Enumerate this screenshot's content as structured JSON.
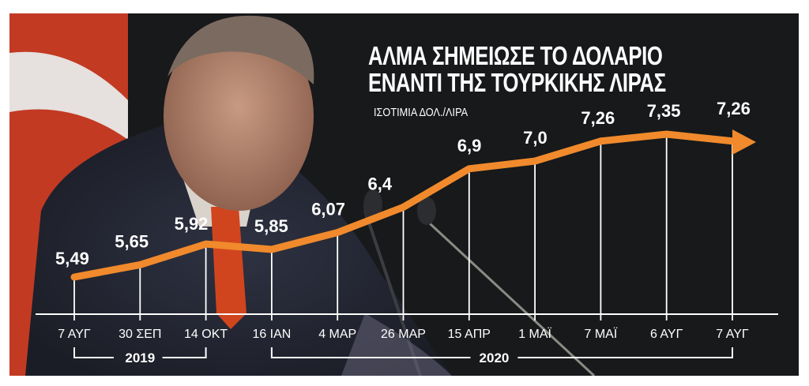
{
  "title_lines": [
    "ΑΛΜΑ ΣΗΜΕΙΩΣΕ ΤΟ ΔΟΛΑΡΙΟ",
    "ΕΝΑΝΤΙ ΤΗΣ ΤΟΥΡΚΙΚΗΣ ΛΙΡΑΣ"
  ],
  "subtitle": "ΙΣΟΤΙΜΙΑ ΔΟΛ./ΛΙΡΑ",
  "colors": {
    "line": "#f08a2c",
    "axis": "#ffffff",
    "text": "#ffffff",
    "background": "#141618"
  },
  "year_groups": [
    {
      "label": "2019",
      "from": "7 ΑΥΓ",
      "to": "14 ΟΚΤ"
    },
    {
      "label": "2020",
      "from": "16 ΙΑΝ",
      "to": "7 ΑΥΓ"
    }
  ],
  "chart_data": {
    "type": "line",
    "title": "ΑΛΜΑ ΣΗΜΕΙΩΣΕ ΤΟ ΔΟΛΑΡΙΟ ΕΝΑΝΤΙ ΤΗΣ ΤΟΥΡΚΙΚΗΣ ΛΙΡΑΣ",
    "subtitle": "ΙΣΟΤΙΜΙΑ ΔΟΛ./ΛΙΡΑ",
    "xlabel": "",
    "ylabel": "",
    "categories": [
      "7 ΑΥΓ",
      "30 ΣΕΠ",
      "14 ΟΚΤ",
      "16 ΙΑΝ",
      "4 ΜΑΡ",
      "26 ΜΑΡ",
      "15 ΑΠΡ",
      "1 ΜΑΪ",
      "7 ΜΑΪ",
      "6 ΑΥΓ",
      "7 ΑΥΓ"
    ],
    "value_labels": [
      "5,49",
      "5,65",
      "5,92",
      "5,85",
      "6,07",
      "6,4",
      "6,9",
      "7,0",
      "7,26",
      "7,35",
      "7,26"
    ],
    "series": [
      {
        "name": "USD/TRY",
        "values": [
          5.49,
          5.65,
          5.92,
          5.85,
          6.07,
          6.4,
          6.9,
          7.0,
          7.26,
          7.35,
          7.26
        ]
      }
    ],
    "year_groups": [
      {
        "label": "2019",
        "categories": [
          "7 ΑΥΓ",
          "30 ΣΕΠ",
          "14 ΟΚΤ"
        ]
      },
      {
        "label": "2020",
        "categories": [
          "16 ΙΑΝ",
          "4 ΜΑΡ",
          "26 ΜΑΡ",
          "15 ΑΠΡ",
          "1 ΜΑΪ",
          "7 ΜΑΪ",
          "6 ΑΥΓ",
          "7 ΑΥΓ"
        ]
      }
    ],
    "grid": false,
    "legend": "none",
    "end_marker": "arrow"
  }
}
